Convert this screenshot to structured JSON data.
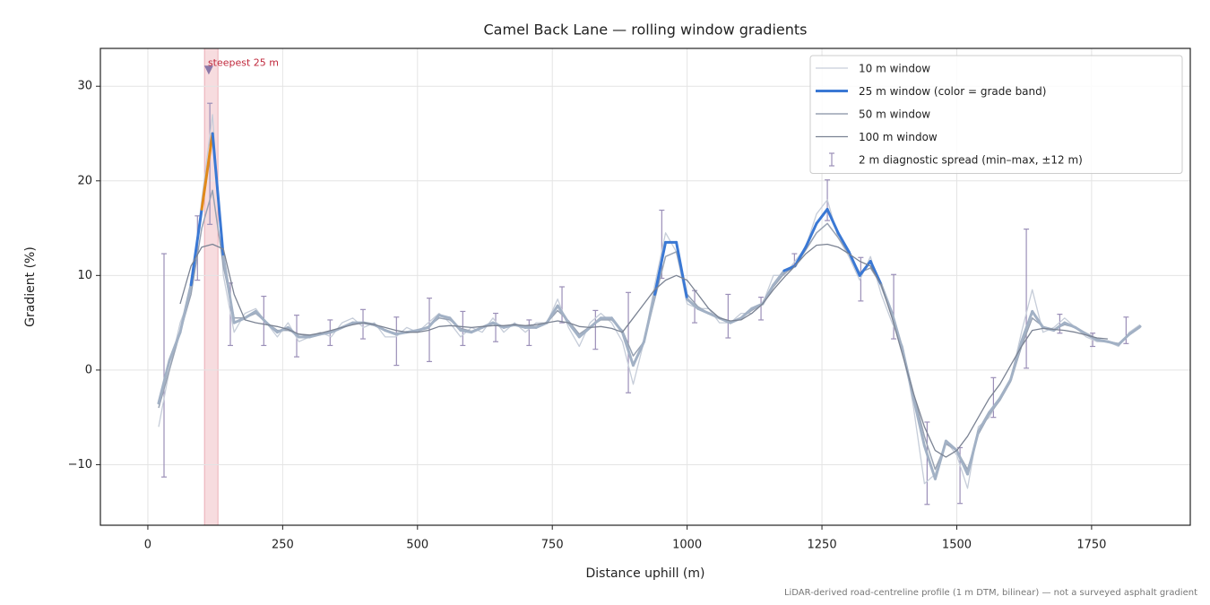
{
  "chart_data": {
    "type": "line",
    "title": "Camel Back Lane — rolling window gradients",
    "xlabel": "Distance uphill (m)",
    "ylabel": "Gradient (%)",
    "note": "LiDAR-derived road-centreline profile (1 m DTM, bilinear) — not a surveyed asphalt gradient",
    "xlim": [
      -88,
      1933
    ],
    "ylim": [
      -16.4,
      34
    ],
    "xticks": [
      0,
      250,
      500,
      750,
      1000,
      1250,
      1500,
      1750
    ],
    "yticks": [
      {
        "value": -10,
        "label": "−10"
      },
      0,
      10,
      20,
      30
    ],
    "grid": true,
    "legend": "upper right",
    "x": [
      20,
      40,
      60,
      80,
      100,
      120,
      140,
      160,
      180,
      200,
      220,
      240,
      260,
      280,
      300,
      320,
      340,
      360,
      380,
      400,
      420,
      440,
      460,
      480,
      500,
      520,
      540,
      560,
      580,
      600,
      620,
      640,
      660,
      680,
      700,
      720,
      740,
      760,
      780,
      800,
      820,
      840,
      860,
      880,
      900,
      920,
      940,
      960,
      980,
      1000,
      1020,
      1040,
      1060,
      1080,
      1100,
      1120,
      1140,
      1160,
      1180,
      1200,
      1220,
      1240,
      1260,
      1280,
      1300,
      1320,
      1340,
      1360,
      1380,
      1400,
      1420,
      1440,
      1460,
      1480,
      1500,
      1520,
      1540,
      1560,
      1580,
      1600,
      1620,
      1640,
      1660,
      1680,
      1700,
      1720,
      1740,
      1760,
      1780,
      1800,
      1820,
      1840
    ],
    "series": [
      {
        "name": "10 m window",
        "color": "#c6cdd9",
        "width": 1.3,
        "values": [
          -6,
          0,
          5,
          8,
          18,
          27,
          10,
          4,
          6,
          6.5,
          5,
          3.5,
          5,
          3,
          3.5,
          4,
          3.5,
          5,
          5.5,
          4.5,
          5,
          3.5,
          3.5,
          4.5,
          4,
          5,
          6,
          5,
          3.5,
          4.5,
          4,
          5.5,
          4,
          5,
          4,
          5,
          5,
          7.5,
          4.5,
          2.5,
          5,
          6,
          5,
          3,
          -1.5,
          3,
          9,
          14.5,
          12.5,
          7,
          6.5,
          6.5,
          5,
          5,
          6,
          6,
          7,
          10,
          10,
          11.5,
          13,
          16.5,
          18,
          14,
          12,
          9.5,
          12,
          8,
          5,
          2.5,
          -4,
          -12,
          -11,
          -7.5,
          -9,
          -12.5,
          -6,
          -5,
          -3,
          -1,
          4,
          8.5,
          4,
          4.5,
          5.5,
          4.5,
          3.5,
          3,
          3,
          2.5,
          4,
          4.8
        ]
      },
      {
        "name": "25 m window (color = grade band)",
        "color": "#3a78d4",
        "base_color": "#a2b1c5",
        "width": 3,
        "grade_bands": [
          {
            "min": 10,
            "color": "#3a78d4"
          },
          {
            "min": 20,
            "color": "#e0891a"
          }
        ],
        "values": [
          -3.5,
          1,
          4,
          9,
          17,
          25,
          12,
          5,
          5.5,
          6.2,
          5,
          4,
          4.5,
          3.5,
          3.5,
          3.8,
          4,
          4.5,
          5,
          5,
          4.8,
          4.2,
          3.8,
          4,
          4.2,
          4.5,
          5.8,
          5.5,
          4.2,
          4,
          4.5,
          5,
          4.5,
          4.8,
          4.5,
          4.5,
          5,
          6.8,
          5,
          3.5,
          4.5,
          5.5,
          5.5,
          4,
          0.5,
          3,
          8,
          13.5,
          13.5,
          7.5,
          6.5,
          6,
          5.5,
          5,
          5.5,
          6.5,
          7,
          9,
          10.5,
          11,
          13,
          15.5,
          17,
          14.5,
          12.5,
          10,
          11.5,
          9,
          6,
          2,
          -3,
          -8,
          -11.5,
          -7.5,
          -8.5,
          -11,
          -6.5,
          -4.5,
          -3,
          -1,
          3,
          6.2,
          4.5,
          4.2,
          5,
          4.5,
          3.8,
          3.2,
          3,
          2.7,
          3.8,
          4.6
        ]
      },
      {
        "name": "50 m window",
        "color": "#98a2b2",
        "width": 1.5,
        "values": [
          -4,
          0,
          4,
          8,
          15,
          19,
          11,
          5.5,
          5.5,
          6,
          5,
          4.2,
          4.2,
          3.8,
          3.6,
          3.8,
          4.1,
          4.5,
          4.9,
          5,
          4.7,
          4.2,
          3.9,
          4,
          4.2,
          4.6,
          5.5,
          5.3,
          4.4,
          4.1,
          4.5,
          4.9,
          4.6,
          4.7,
          4.6,
          4.6,
          5,
          6.3,
          5.2,
          3.8,
          4.6,
          5.3,
          5.3,
          4.2,
          1.5,
          3,
          7.5,
          12,
          12.5,
          8,
          6.7,
          6,
          5.5,
          5.1,
          5.5,
          6.3,
          7,
          8.8,
          10.2,
          11,
          12.7,
          14.5,
          15.5,
          14,
          12.3,
          10.3,
          10.8,
          9,
          6,
          2,
          -2.5,
          -7,
          -10.5,
          -7.8,
          -8.5,
          -10.5,
          -6.8,
          -4.7,
          -3.2,
          -1.2,
          2.5,
          5.5,
          4.6,
          4.3,
          4.8,
          4.5,
          3.9,
          3.3,
          3,
          2.8,
          3.7,
          4.5
        ]
      },
      {
        "name": "100 m window",
        "color": "#7b8393",
        "width": 1.3,
        "values": [
          null,
          null,
          7,
          11,
          13,
          13.3,
          12.8,
          8,
          5.3,
          5,
          4.8,
          4.6,
          4.3,
          3.8,
          3.7,
          3.9,
          4.2,
          4.5,
          4.8,
          5,
          4.8,
          4.5,
          4.2,
          4,
          4,
          4.2,
          4.6,
          4.7,
          4.6,
          4.5,
          4.6,
          4.7,
          4.7,
          4.8,
          4.7,
          4.8,
          5,
          5.2,
          5,
          4.6,
          4.5,
          4.6,
          4.4,
          4,
          5.5,
          7,
          8.5,
          9.5,
          10,
          9.5,
          8,
          6.5,
          5.5,
          5.2,
          5.3,
          6,
          7,
          8.5,
          9.8,
          11,
          12.3,
          13.2,
          13.3,
          13,
          12.3,
          11.5,
          11,
          9,
          5.5,
          1.5,
          -2.5,
          -6,
          -8.5,
          -9.2,
          -8.5,
          -7,
          -5,
          -3,
          -1.5,
          0.5,
          2.5,
          4.2,
          4.4,
          4.3,
          4.2,
          4,
          3.7,
          3.4,
          3.3,
          null,
          null,
          null
        ]
      }
    ],
    "errorbars": {
      "name": "2 m diagnostic spread (min–max, ±12 m)",
      "color": "#9b8fb8",
      "x": [
        30,
        92,
        115,
        153,
        215,
        276,
        338,
        399,
        461,
        522,
        584,
        645,
        707,
        768,
        830,
        891,
        953,
        1014,
        1076,
        1137,
        1199,
        1260,
        1322,
        1383,
        1445,
        1506,
        1568,
        1629,
        1691,
        1752,
        1814
      ],
      "low": [
        -11.3,
        9.5,
        15.4,
        2.6,
        2.6,
        1.4,
        2.6,
        3.3,
        0.5,
        0.9,
        2.6,
        3.0,
        2.6,
        5.0,
        2.2,
        -2.4,
        9.7,
        5.0,
        3.4,
        5.3,
        11.1,
        15.8,
        7.3,
        3.3,
        -14.2,
        -14.1,
        -5.0,
        0.2,
        3.9,
        2.5,
        2.8
      ],
      "high": [
        12.3,
        16.3,
        28.2,
        9.2,
        7.8,
        5.8,
        5.3,
        6.4,
        5.6,
        7.6,
        6.2,
        6.0,
        5.3,
        8.8,
        6.3,
        8.2,
        16.9,
        8.4,
        8.0,
        7.7,
        12.3,
        20.1,
        11.9,
        10.1,
        -5.5,
        -8.2,
        -0.8,
        14.9,
        5.9,
        3.9,
        5.6
      ]
    },
    "highlight": {
      "xmin": 105,
      "xmax": 130,
      "color": "#f2c4ca"
    },
    "annotation": {
      "text": "steepest 25 m",
      "x": 113,
      "y": 31.7,
      "color": "#c0283c",
      "marker_color": "#8a78a8"
    }
  }
}
